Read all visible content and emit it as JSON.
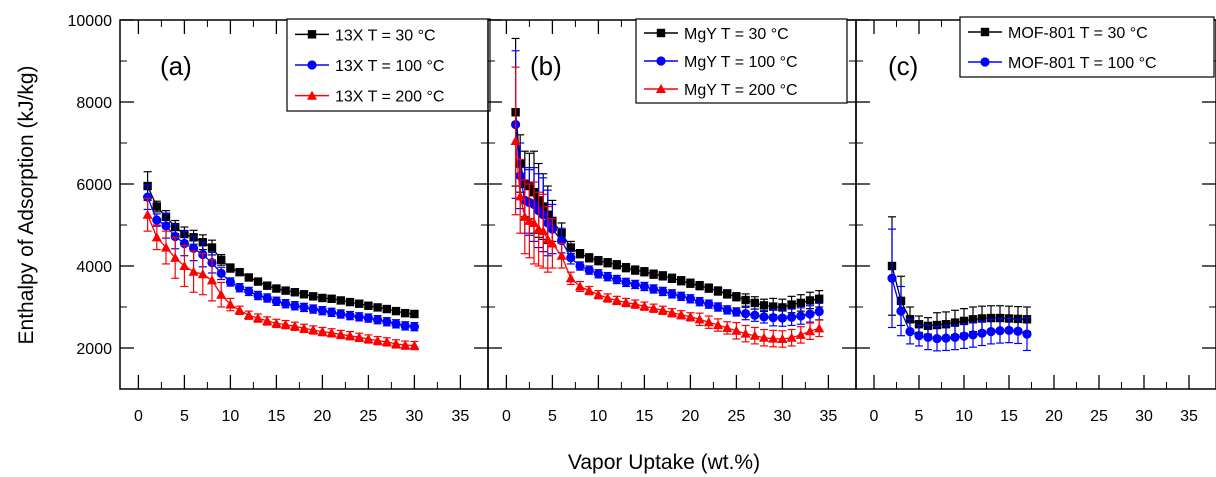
{
  "chart_data": {
    "type": "scatter",
    "ylabel": "Enthalpy of Adsorption (kJ/kg)",
    "xlabel": "Vapor Uptake (wt.%)",
    "ylim": [
      1000,
      10000
    ],
    "yticks": [
      "2000",
      "4000",
      "6000",
      "8000",
      "10000"
    ],
    "yticks_values": [
      2000,
      4000,
      6000,
      8000,
      10000
    ],
    "xlim": [
      -2,
      38
    ],
    "xticks": [
      "0",
      "5",
      "10",
      "15",
      "20",
      "25",
      "30",
      "35"
    ],
    "xticks_values": [
      0,
      5,
      10,
      15,
      20,
      25,
      30,
      35
    ],
    "colors": {
      "black": "#000000",
      "blue": "#0000ff",
      "red": "#ff0000"
    },
    "panels": [
      {
        "label": "(a)",
        "series": [
          {
            "name": "13X T = 30 °C",
            "color": "black",
            "marker": "square",
            "x": [
              1,
              2,
              3,
              4,
              5,
              6,
              7,
              8,
              9,
              10,
              11,
              12,
              13,
              14,
              15,
              16,
              17,
              18,
              19,
              20,
              21,
              22,
              23,
              24,
              25,
              26,
              27,
              28,
              29,
              30
            ],
            "y": [
              5950,
              5450,
              5200,
              4950,
              4780,
              4700,
              4580,
              4450,
              4150,
              3950,
              3850,
              3720,
              3620,
              3520,
              3450,
              3400,
              3360,
              3310,
              3260,
              3220,
              3200,
              3160,
              3120,
              3080,
              3030,
              2990,
              2950,
              2900,
              2850,
              2830
            ],
            "err": [
              350,
              130,
              150,
              160,
              170,
              170,
              180,
              180,
              130,
              100,
              80,
              80,
              80,
              80,
              80,
              80,
              80,
              80,
              80,
              80,
              80,
              80,
              80,
              80,
              80,
              80,
              80,
              80,
              80,
              80
            ]
          },
          {
            "name": "13X T = 100 °C",
            "color": "blue",
            "marker": "circle",
            "x": [
              1,
              2,
              3,
              4,
              5,
              6,
              7,
              8,
              9,
              10,
              11,
              12,
              13,
              14,
              15,
              16,
              17,
              18,
              19,
              20,
              21,
              22,
              23,
              24,
              25,
              26,
              27,
              28,
              29,
              30
            ],
            "y": [
              5680,
              5120,
              4980,
              4720,
              4550,
              4430,
              4280,
              4080,
              3820,
              3610,
              3470,
              3380,
              3280,
              3220,
              3140,
              3080,
              3030,
              2990,
              2950,
              2910,
              2870,
              2830,
              2790,
              2760,
              2730,
              2690,
              2640,
              2590,
              2540,
              2520
            ],
            "err": [
              300,
              150,
              300,
              300,
              300,
              300,
              300,
              250,
              150,
              100,
              100,
              100,
              100,
              100,
              100,
              100,
              100,
              100,
              100,
              100,
              100,
              100,
              100,
              100,
              100,
              100,
              100,
              100,
              100,
              100
            ]
          },
          {
            "name": "13X T = 200 °C",
            "color": "red",
            "marker": "triangle",
            "x": [
              1,
              2,
              3,
              4,
              5,
              6,
              7,
              8,
              9,
              10,
              11,
              12,
              13,
              14,
              15,
              16,
              17,
              18,
              19,
              20,
              21,
              22,
              23,
              24,
              25,
              26,
              27,
              28,
              29,
              30
            ],
            "y": [
              5250,
              4700,
              4450,
              4200,
              4000,
              3860,
              3800,
              3650,
              3300,
              3060,
              2920,
              2800,
              2730,
              2660,
              2600,
              2570,
              2530,
              2480,
              2440,
              2400,
              2370,
              2330,
              2300,
              2260,
              2220,
              2180,
              2150,
              2100,
              2070,
              2060
            ],
            "err": [
              400,
              300,
              400,
              500,
              500,
              500,
              500,
              500,
              300,
              150,
              100,
              100,
              100,
              100,
              100,
              100,
              100,
              100,
              100,
              100,
              100,
              100,
              100,
              100,
              100,
              100,
              100,
              100,
              100,
              100
            ]
          }
        ]
      },
      {
        "label": "(b)",
        "series": [
          {
            "name": "MgY T = 30 °C",
            "color": "black",
            "marker": "square",
            "x": [
              1,
              1.5,
              2,
              2.5,
              3,
              3.5,
              4,
              4.5,
              5,
              6,
              7,
              8,
              9,
              10,
              11,
              12,
              13,
              14,
              15,
              16,
              17,
              18,
              19,
              20,
              21,
              22,
              23,
              24,
              25,
              26,
              27,
              28,
              29,
              30,
              31,
              32,
              33,
              34
            ],
            "y": [
              7750,
              6500,
              6000,
              5950,
              5800,
              5600,
              5450,
              5250,
              5100,
              4800,
              4450,
              4300,
              4200,
              4130,
              4080,
              4030,
              3960,
              3900,
              3860,
              3800,
              3760,
              3700,
              3640,
              3580,
              3520,
              3460,
              3390,
              3320,
              3250,
              3170,
              3100,
              3040,
              3010,
              2990,
              3060,
              3100,
              3160,
              3200
            ],
            "err": [
              1800,
              700,
              800,
              800,
              1000,
              900,
              800,
              700,
              500,
              250,
              150,
              100,
              100,
              100,
              100,
              100,
              100,
              100,
              100,
              100,
              100,
              100,
              100,
              100,
              100,
              100,
              100,
              100,
              100,
              150,
              150,
              150,
              200,
              200,
              200,
              200,
              200,
              200
            ]
          },
          {
            "name": "MgY T = 100 °C",
            "color": "blue",
            "marker": "circle",
            "x": [
              1,
              1.5,
              2,
              2.5,
              3,
              3.5,
              4,
              4.5,
              5,
              6,
              7,
              8,
              9,
              10,
              11,
              12,
              13,
              14,
              15,
              16,
              17,
              18,
              19,
              20,
              21,
              22,
              23,
              24,
              25,
              26,
              27,
              28,
              29,
              30,
              31,
              32,
              33,
              34
            ],
            "y": [
              7450,
              6200,
              5600,
              5550,
              5500,
              5350,
              5250,
              5050,
              4900,
              4620,
              4200,
              4000,
              3900,
              3810,
              3740,
              3670,
              3600,
              3550,
              3500,
              3440,
              3380,
              3320,
              3260,
              3200,
              3130,
              3070,
              3000,
              2930,
              2880,
              2840,
              2800,
              2760,
              2740,
              2730,
              2750,
              2780,
              2830,
              2890
            ],
            "err": [
              1800,
              800,
              800,
              800,
              900,
              900,
              900,
              800,
              600,
              300,
              150,
              100,
              100,
              100,
              100,
              100,
              100,
              100,
              100,
              100,
              100,
              100,
              100,
              100,
              100,
              100,
              100,
              100,
              100,
              150,
              150,
              150,
              200,
              200,
              200,
              200,
              200,
              200
            ]
          },
          {
            "name": "MgY T = 200 °C",
            "color": "red",
            "marker": "triangle",
            "x": [
              1,
              1.5,
              2,
              2.5,
              3,
              3.5,
              4,
              4.5,
              5,
              6,
              7,
              8,
              9,
              10,
              11,
              12,
              13,
              14,
              15,
              16,
              17,
              18,
              19,
              20,
              21,
              22,
              23,
              24,
              25,
              26,
              27,
              28,
              29,
              30,
              31,
              32,
              33,
              34
            ],
            "y": [
              7050,
              5700,
              5200,
              5100,
              5050,
              4900,
              4850,
              4650,
              4550,
              4250,
              3700,
              3500,
              3400,
              3300,
              3220,
              3160,
              3110,
              3070,
              3020,
              2970,
              2920,
              2860,
              2810,
              2760,
              2700,
              2630,
              2560,
              2490,
              2420,
              2350,
              2300,
              2250,
              2230,
              2220,
              2250,
              2320,
              2410,
              2480
            ],
            "err": [
              1800,
              900,
              900,
              900,
              1000,
              900,
              900,
              800,
              600,
              300,
              150,
              120,
              100,
              100,
              100,
              100,
              100,
              100,
              100,
              100,
              100,
              100,
              100,
              100,
              150,
              150,
              150,
              150,
              200,
              200,
              200,
              200,
              200,
              200,
              200,
              200,
              200,
              200
            ]
          }
        ]
      },
      {
        "label": "(c)",
        "series": [
          {
            "name": "MOF-801 T = 30 °C",
            "color": "black",
            "marker": "square",
            "x": [
              2,
              3,
              4,
              5,
              6,
              7,
              8,
              9,
              10,
              11,
              12,
              13,
              14,
              15,
              16,
              17
            ],
            "y": [
              4000,
              3150,
              2700,
              2580,
              2540,
              2560,
              2580,
              2620,
              2660,
              2700,
              2720,
              2730,
              2730,
              2720,
              2710,
              2700
            ],
            "err": [
              1200,
              600,
              300,
              200,
              200,
              300,
              300,
              300,
              300,
              300,
              300,
              300,
              300,
              300,
              300,
              300
            ]
          },
          {
            "name": "MOF-801 T = 100 °C",
            "color": "blue",
            "marker": "circle",
            "x": [
              2,
              3,
              4,
              5,
              6,
              7,
              8,
              9,
              10,
              11,
              12,
              13,
              14,
              15,
              16,
              17
            ],
            "y": [
              3700,
              2900,
              2400,
              2300,
              2260,
              2230,
              2240,
              2260,
              2290,
              2320,
              2360,
              2400,
              2420,
              2430,
              2410,
              2340
            ],
            "err": [
              1200,
              600,
              300,
              250,
              300,
              300,
              300,
              300,
              300,
              300,
              300,
              300,
              300,
              300,
              300,
              400
            ]
          }
        ]
      }
    ]
  }
}
